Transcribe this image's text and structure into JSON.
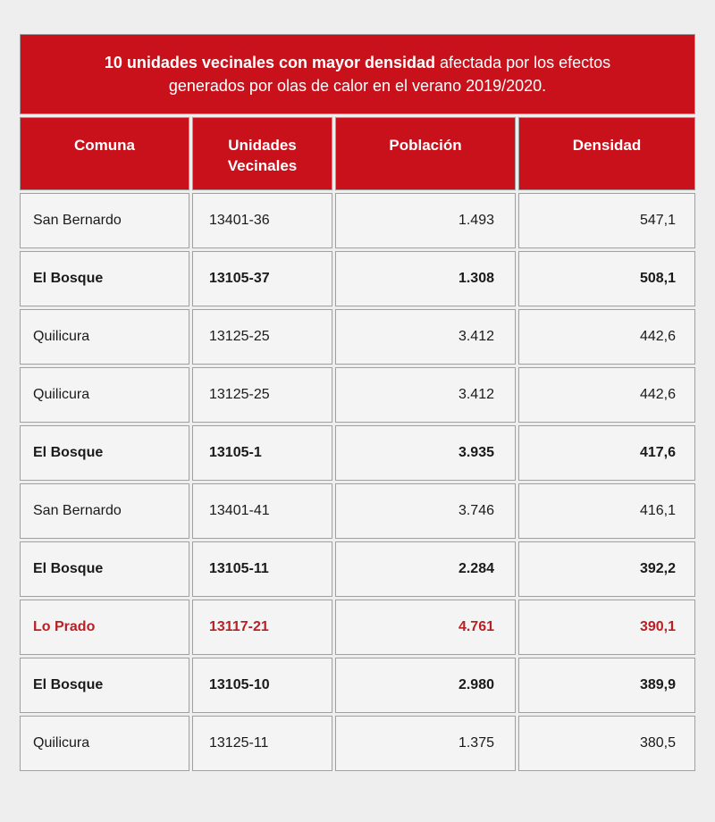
{
  "table": {
    "title": {
      "bold_part": "10 unidades vecinales con mayor densidad",
      "regular_line1": " afectada por los efectos",
      "line2": "generados por olas de calor en el verano 2019/2020."
    },
    "columns": [
      "Comuna",
      "Unidades Vecinales",
      "Población",
      "Densidad"
    ],
    "rows": [
      {
        "comuna": "San Bernardo",
        "unidad": "13401-36",
        "poblacion": "1.493",
        "densidad": "547,1",
        "emphasis": "normal"
      },
      {
        "comuna": "El Bosque",
        "unidad": "13105-37",
        "poblacion": "1.308",
        "densidad": "508,1",
        "emphasis": "bold"
      },
      {
        "comuna": "Quilicura",
        "unidad": "13125-25",
        "poblacion": "3.412",
        "densidad": "442,6",
        "emphasis": "normal"
      },
      {
        "comuna": "Quilicura",
        "unidad": "13125-25",
        "poblacion": "3.412",
        "densidad": "442,6",
        "emphasis": "normal"
      },
      {
        "comuna": "El Bosque",
        "unidad": "13105-1",
        "poblacion": "3.935",
        "densidad": "417,6",
        "emphasis": "bold"
      },
      {
        "comuna": "San Bernardo",
        "unidad": "13401-41",
        "poblacion": "3.746",
        "densidad": "416,1",
        "emphasis": "normal"
      },
      {
        "comuna": "El Bosque",
        "unidad": "13105-11",
        "poblacion": "2.284",
        "densidad": "392,2",
        "emphasis": "bold"
      },
      {
        "comuna": "Lo Prado",
        "unidad": "13117-21",
        "poblacion": "4.761",
        "densidad": "390,1",
        "emphasis": "bold-red"
      },
      {
        "comuna": "El Bosque",
        "unidad": "13105-10",
        "poblacion": "2.980",
        "densidad": "389,9",
        "emphasis": "bold"
      },
      {
        "comuna": "Quilicura",
        "unidad": "13125-11",
        "poblacion": "1.375",
        "densidad": "380,5",
        "emphasis": "normal"
      }
    ],
    "colors": {
      "header_bg": "#c9111b",
      "header_text": "#ffffff",
      "accent_row_text": "#b92025",
      "body_text": "#1a1a1a",
      "cell_border": "#a0a0a0",
      "cell_bg": "#f4f4f4",
      "page_bg": "#eeeeee"
    }
  },
  "chart_data": {
    "type": "table",
    "title": "10 unidades vecinales con mayor densidad afectada por los efectos generados por olas de calor en el verano 2019/2020.",
    "columns": [
      "Comuna",
      "Unidades Vecinales",
      "Población",
      "Densidad"
    ],
    "rows": [
      [
        "San Bernardo",
        "13401-36",
        1493,
        547.1
      ],
      [
        "El Bosque",
        "13105-37",
        1308,
        508.1
      ],
      [
        "Quilicura",
        "13125-25",
        3412,
        442.6
      ],
      [
        "Quilicura",
        "13125-25",
        3412,
        442.6
      ],
      [
        "El Bosque",
        "13105-1",
        3935,
        417.6
      ],
      [
        "San Bernardo",
        "13401-41",
        3746,
        416.1
      ],
      [
        "El Bosque",
        "13105-11",
        2284,
        392.2
      ],
      [
        "Lo Prado",
        "13117-21",
        4761,
        390.1
      ],
      [
        "El Bosque",
        "13105-10",
        2980,
        389.9
      ],
      [
        "Quilicura",
        "13125-11",
        1375,
        380.5
      ]
    ],
    "highlighted_row_index": 7,
    "bold_row_indices": [
      1,
      4,
      6,
      7,
      8
    ],
    "number_format": "es-CL (thousands dot, decimal comma)"
  }
}
